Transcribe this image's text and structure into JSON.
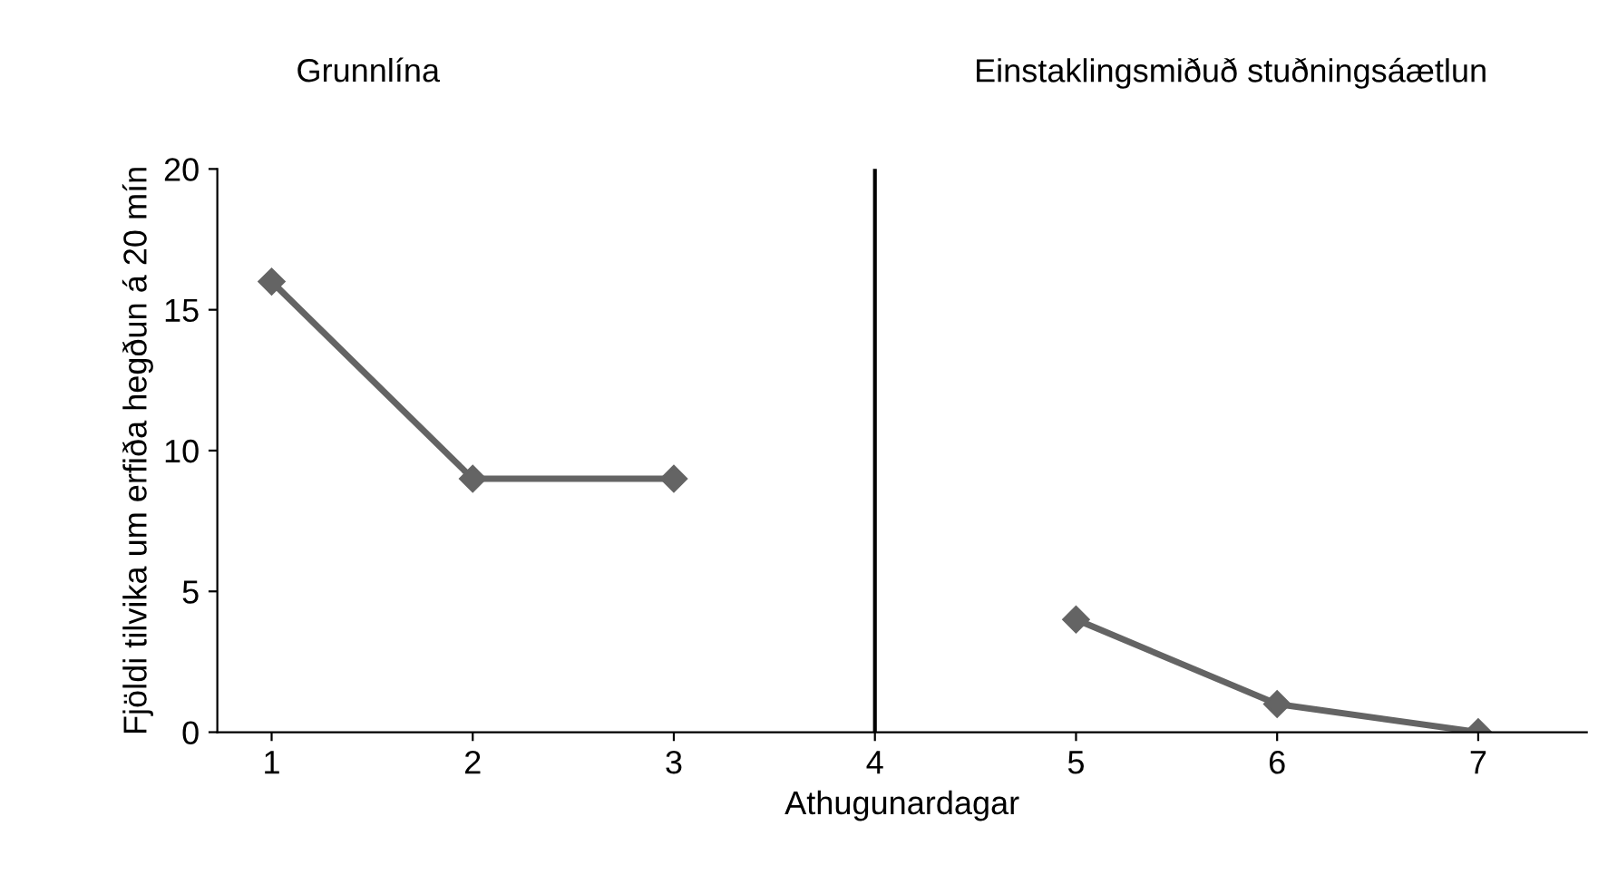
{
  "chart_data": {
    "type": "line",
    "xlabel": "Athugunardagar",
    "ylabel": "Fjöldi tilvika um erfiða hegðun á 20 mín",
    "categories": [
      "1",
      "2",
      "3",
      "4",
      "5",
      "6",
      "7"
    ],
    "series": [
      {
        "color": "#646464",
        "values": [
          16,
          9,
          9,
          null,
          4,
          1,
          0
        ]
      }
    ],
    "ylim": [
      0,
      20
    ],
    "yticks": [
      0,
      5,
      10,
      15,
      20
    ],
    "grid": false,
    "legend": false,
    "marker": "diamond",
    "line_style": "solid",
    "ref_lines": [
      {
        "axis": "x",
        "value": "4",
        "color": "#000000"
      }
    ],
    "annotations": [
      "Grunnlína",
      "Einstaklingsmiðuð stuðningsáætlun"
    ]
  }
}
